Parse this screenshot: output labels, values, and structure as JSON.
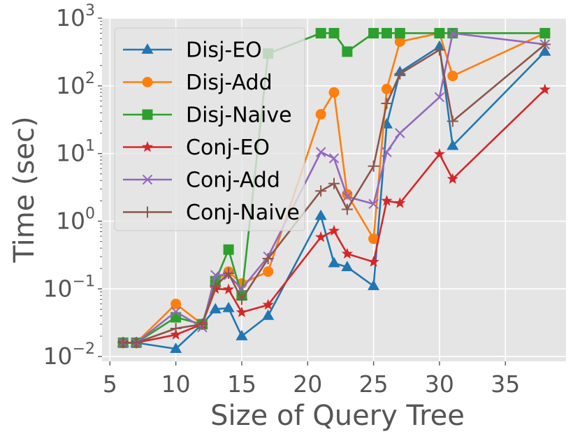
{
  "chart_data": {
    "type": "line",
    "title": "",
    "xlabel": "Size of Query Tree",
    "ylabel": "Time (sec)",
    "xscale": "linear",
    "yscale": "log",
    "xlim": [
      4.4,
      39.6
    ],
    "ylim": [
      0.0085,
      1000
    ],
    "xticks": [
      5,
      10,
      15,
      20,
      25,
      30,
      35
    ],
    "xtick_labels": [
      "5",
      "10",
      "15",
      "20",
      "25",
      "30",
      "35"
    ],
    "yticks": [
      0.01,
      0.1,
      1,
      10,
      100,
      1000
    ],
    "ytick_labels": [
      {
        "base": "10",
        "exp": "−2"
      },
      {
        "base": "10",
        "exp": "−1"
      },
      {
        "base": "10",
        "exp": "0"
      },
      {
        "base": "10",
        "exp": "1"
      },
      {
        "base": "10",
        "exp": "2"
      },
      {
        "base": "10",
        "exp": "3"
      }
    ],
    "grid": true,
    "legend_position": "upper-left",
    "series": [
      {
        "name": "Disj-EO",
        "color": "#1f77b4",
        "marker": "triangle",
        "x": [
          6,
          7,
          10,
          12,
          13,
          14,
          15,
          17,
          21,
          22,
          23,
          25,
          26,
          27,
          30,
          31,
          38
        ],
        "y": [
          0.016,
          0.016,
          0.013,
          0.03,
          0.05,
          0.052,
          0.02,
          0.04,
          1.2,
          0.24,
          0.21,
          0.11,
          27,
          160,
          380,
          13,
          320
        ]
      },
      {
        "name": "Disj-Add",
        "color": "#ff7f0e",
        "marker": "circle",
        "x": [
          6,
          7,
          10,
          12,
          13,
          14,
          15,
          17,
          21,
          22,
          23,
          25,
          26,
          27,
          30,
          31,
          38
        ],
        "y": [
          0.016,
          0.016,
          0.06,
          0.03,
          0.13,
          0.18,
          0.12,
          0.18,
          38,
          80,
          2.5,
          0.55,
          90,
          450,
          600,
          140,
          600
        ]
      },
      {
        "name": "Disj-Naive",
        "color": "#2ca02c",
        "marker": "square",
        "x": [
          6,
          7,
          10,
          12,
          13,
          14,
          15,
          17,
          21,
          22,
          23,
          25,
          26,
          27,
          30,
          31,
          38
        ],
        "y": [
          0.016,
          0.016,
          0.038,
          0.03,
          0.13,
          0.38,
          0.08,
          300,
          600,
          600,
          320,
          600,
          600,
          600,
          600,
          600,
          600
        ]
      },
      {
        "name": "Conj-EO",
        "color": "#d62728",
        "marker": "star",
        "x": [
          6,
          7,
          10,
          12,
          13,
          14,
          15,
          17,
          21,
          22,
          23,
          25,
          26,
          27,
          30,
          31,
          38
        ],
        "y": [
          0.016,
          0.016,
          0.021,
          0.03,
          0.1,
          0.098,
          0.045,
          0.058,
          0.58,
          0.72,
          0.33,
          0.25,
          2.0,
          1.85,
          9.8,
          4.2,
          88
        ]
      },
      {
        "name": "Conj-Add",
        "color": "#9467bd",
        "marker": "x",
        "x": [
          6,
          7,
          10,
          12,
          13,
          14,
          15,
          17,
          21,
          22,
          23,
          25,
          26,
          27,
          30,
          31,
          38
        ],
        "y": [
          0.016,
          0.016,
          0.046,
          0.027,
          0.16,
          0.16,
          0.1,
          0.3,
          10.5,
          8.5,
          2.3,
          1.8,
          10.5,
          20,
          68,
          600,
          410
        ]
      },
      {
        "name": "Conj-Naive",
        "color": "#8c564b",
        "marker": "plus",
        "x": [
          6,
          7,
          10,
          12,
          13,
          14,
          15,
          17,
          21,
          22,
          23,
          25,
          26,
          27,
          30,
          31,
          38
        ],
        "y": [
          0.016,
          0.016,
          0.026,
          0.03,
          0.11,
          0.17,
          0.07,
          0.28,
          2.8,
          3.6,
          1.5,
          6.5,
          55,
          150,
          340,
          30,
          410
        ]
      }
    ]
  }
}
